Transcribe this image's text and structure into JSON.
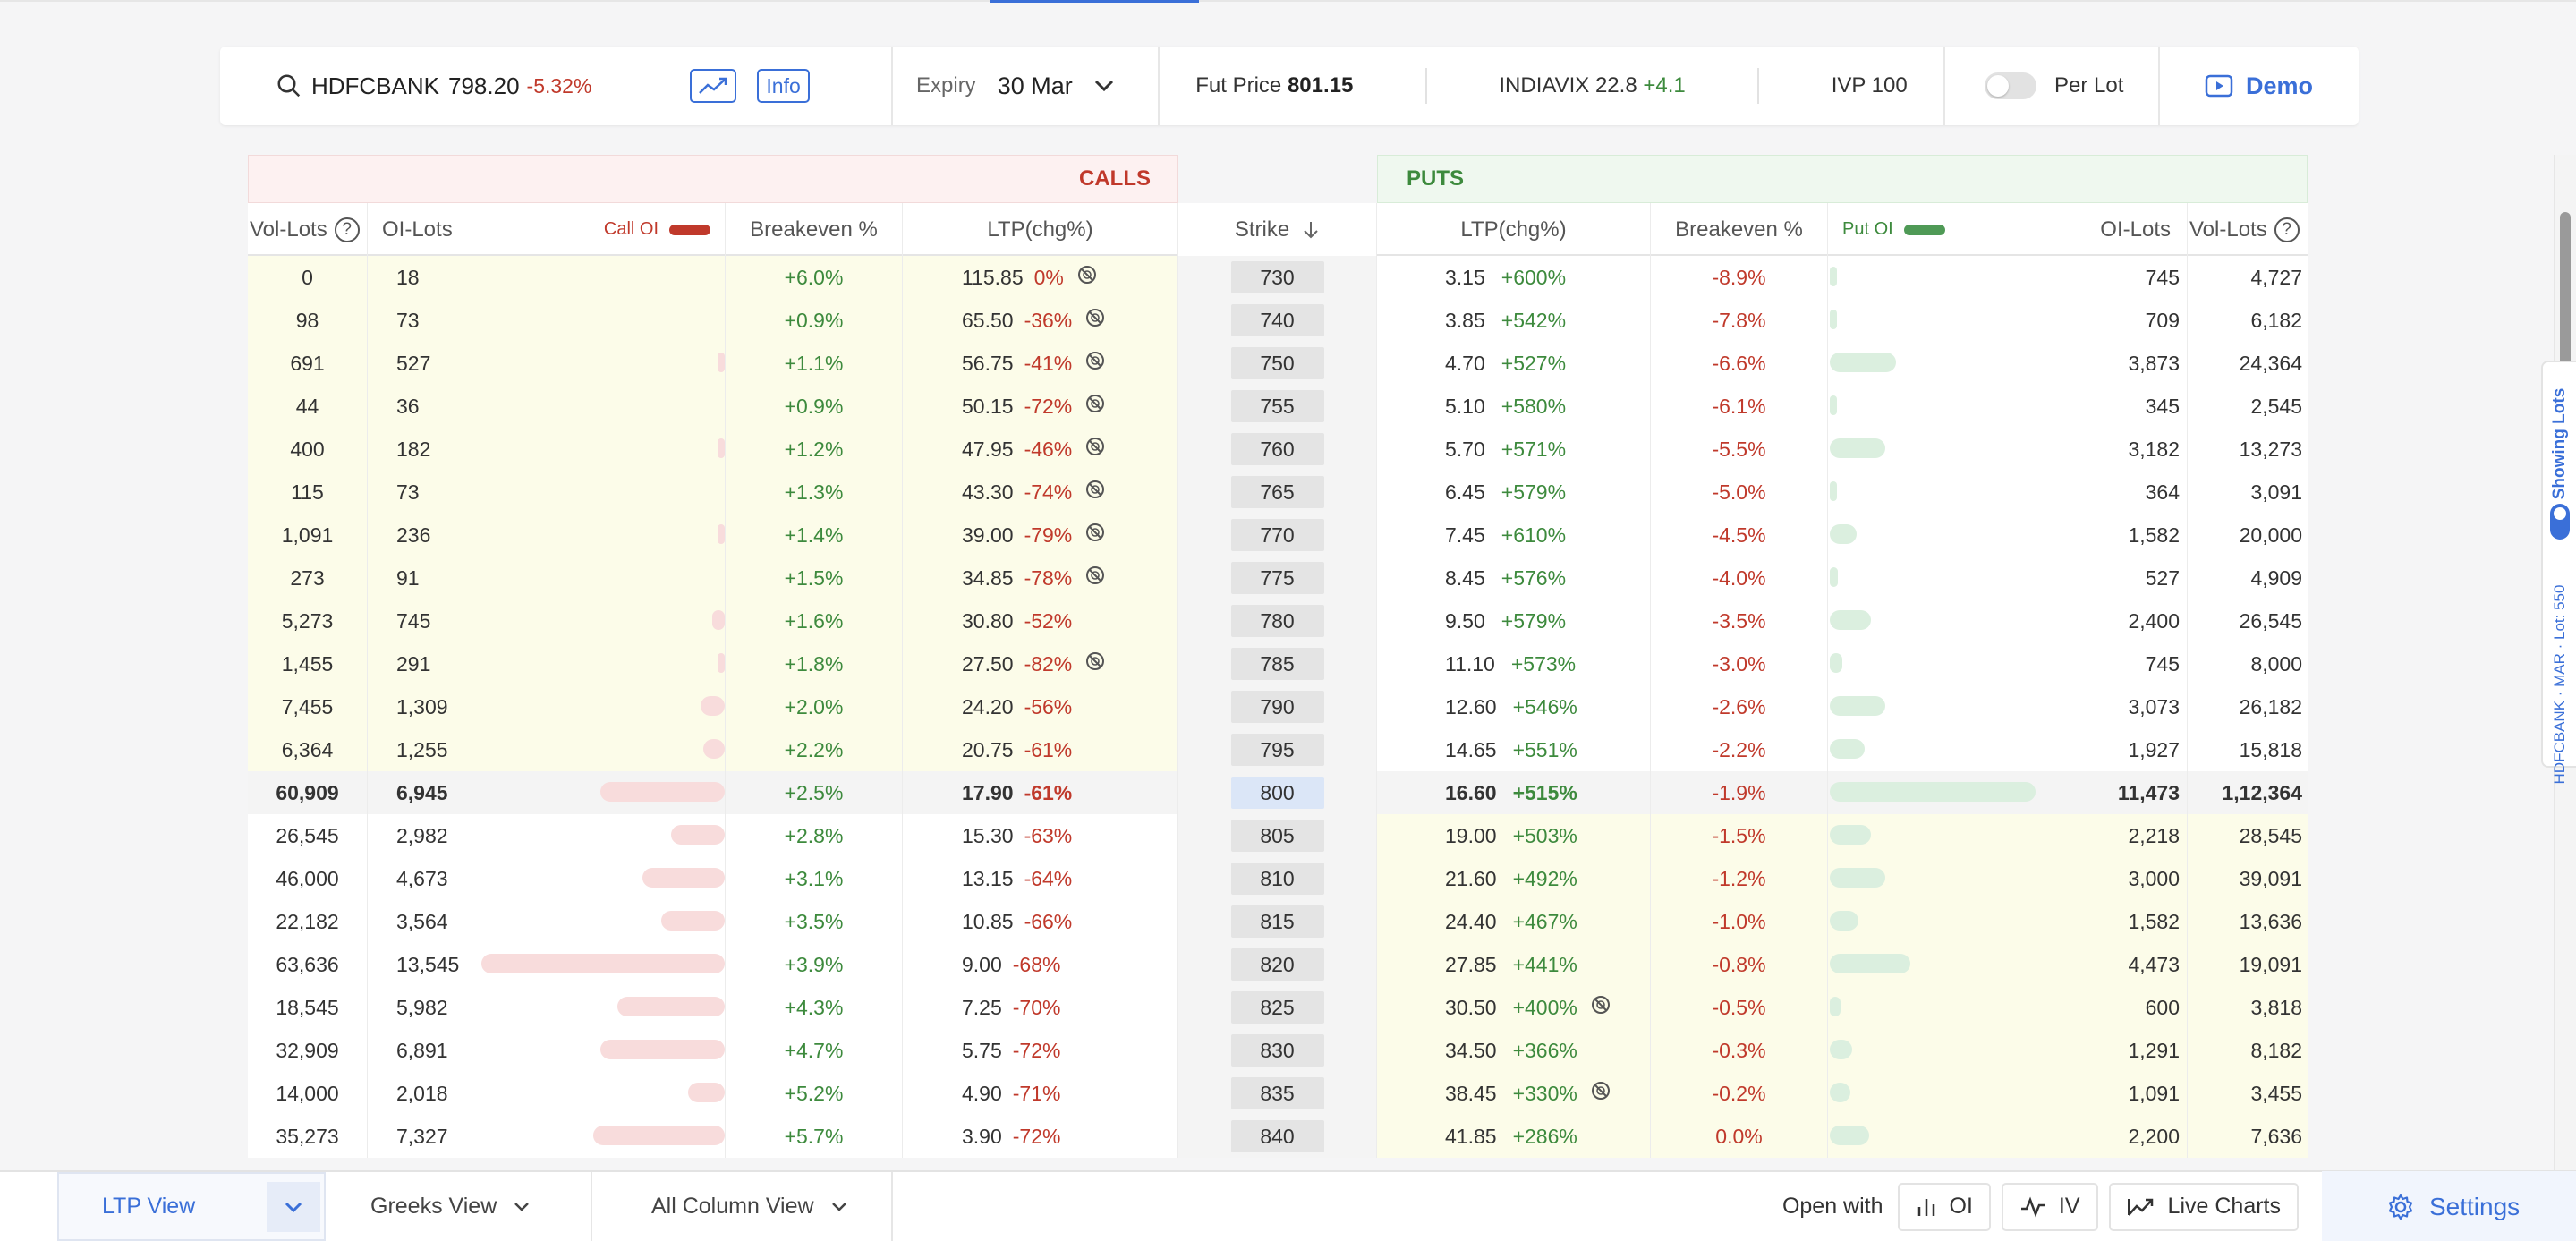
{
  "header": {
    "symbol": "HDFCBANK",
    "price": "798.20",
    "change": "-5.32%",
    "info_label": "Info",
    "expiry_label": "Expiry",
    "expiry_value": "30 Mar",
    "fut_label": "Fut Price",
    "fut_value": "801.15",
    "vix_label": "INDIAVIX",
    "vix_value": "22.8",
    "vix_change": "+4.1",
    "ivp_label": "IVP",
    "ivp_value": "100",
    "per_lot_label": "Per Lot",
    "demo_label": "Demo"
  },
  "bands": {
    "calls": "CALLS",
    "puts": "PUTS"
  },
  "columns": {
    "vol_lots": "Vol-Lots",
    "oi_lots": "OI-Lots",
    "call_oi": "Call OI",
    "breakeven": "Breakeven %",
    "ltp": "LTP(chg%)",
    "strike": "Strike",
    "put_oi": "Put OI"
  },
  "colors": {
    "accent": "#3a6fd8",
    "call": "#c0392b",
    "put": "#3d8a3d",
    "itm": "#fcfce9"
  },
  "rows": [
    {
      "strike": "730",
      "c_vol": "0",
      "c_oi": "18",
      "c_be": "+6.0%",
      "c_ltp": "115.85",
      "c_chg": "0%",
      "c_noicon": true,
      "p_ltp": "3.15",
      "p_chg": "+600%",
      "p_noicon": false,
      "p_be": "-8.9%",
      "p_oi": "745",
      "p_vol": "4,727",
      "c_bar": 0.0,
      "p_bar": 0.03,
      "zone": "call-itm"
    },
    {
      "strike": "740",
      "c_vol": "98",
      "c_oi": "73",
      "c_be": "+0.9%",
      "c_ltp": "65.50",
      "c_chg": "-36%",
      "c_noicon": true,
      "p_ltp": "3.85",
      "p_chg": "+542%",
      "p_noicon": false,
      "p_be": "-7.8%",
      "p_oi": "709",
      "p_vol": "6,182",
      "c_bar": 0.0,
      "p_bar": 0.03,
      "zone": "call-itm"
    },
    {
      "strike": "750",
      "c_vol": "691",
      "c_oi": "527",
      "c_be": "+1.1%",
      "c_ltp": "56.75",
      "c_chg": "-41%",
      "c_noicon": true,
      "p_ltp": "4.70",
      "p_chg": "+527%",
      "p_noicon": false,
      "p_be": "-6.6%",
      "p_oi": "3,873",
      "p_vol": "24,364",
      "c_bar": 0.02,
      "p_bar": 0.32,
      "zone": "call-itm"
    },
    {
      "strike": "755",
      "c_vol": "44",
      "c_oi": "36",
      "c_be": "+0.9%",
      "c_ltp": "50.15",
      "c_chg": "-72%",
      "c_noicon": true,
      "p_ltp": "5.10",
      "p_chg": "+580%",
      "p_noicon": false,
      "p_be": "-6.1%",
      "p_oi": "345",
      "p_vol": "2,545",
      "c_bar": 0.0,
      "p_bar": 0.03,
      "zone": "call-itm"
    },
    {
      "strike": "760",
      "c_vol": "400",
      "c_oi": "182",
      "c_be": "+1.2%",
      "c_ltp": "47.95",
      "c_chg": "-46%",
      "c_noicon": true,
      "p_ltp": "5.70",
      "p_chg": "+571%",
      "p_noicon": false,
      "p_be": "-5.5%",
      "p_oi": "3,182",
      "p_vol": "13,273",
      "c_bar": 0.01,
      "p_bar": 0.27,
      "zone": "call-itm"
    },
    {
      "strike": "765",
      "c_vol": "115",
      "c_oi": "73",
      "c_be": "+1.3%",
      "c_ltp": "43.30",
      "c_chg": "-74%",
      "c_noicon": true,
      "p_ltp": "6.45",
      "p_chg": "+579%",
      "p_noicon": false,
      "p_be": "-5.0%",
      "p_oi": "364",
      "p_vol": "3,091",
      "c_bar": 0.0,
      "p_bar": 0.03,
      "zone": "call-itm"
    },
    {
      "strike": "770",
      "c_vol": "1,091",
      "c_oi": "236",
      "c_be": "+1.4%",
      "c_ltp": "39.00",
      "c_chg": "-79%",
      "c_noicon": true,
      "p_ltp": "7.45",
      "p_chg": "+610%",
      "p_noicon": false,
      "p_be": "-4.5%",
      "p_oi": "1,582",
      "p_vol": "20,000",
      "c_bar": 0.01,
      "p_bar": 0.13,
      "zone": "call-itm"
    },
    {
      "strike": "775",
      "c_vol": "273",
      "c_oi": "91",
      "c_be": "+1.5%",
      "c_ltp": "34.85",
      "c_chg": "-78%",
      "c_noicon": true,
      "p_ltp": "8.45",
      "p_chg": "+576%",
      "p_noicon": false,
      "p_be": "-4.0%",
      "p_oi": "527",
      "p_vol": "4,909",
      "c_bar": 0.0,
      "p_bar": 0.04,
      "zone": "call-itm"
    },
    {
      "strike": "780",
      "c_vol": "5,273",
      "c_oi": "745",
      "c_be": "+1.6%",
      "c_ltp": "30.80",
      "c_chg": "-52%",
      "c_noicon": false,
      "p_ltp": "9.50",
      "p_chg": "+579%",
      "p_noicon": false,
      "p_be": "-3.5%",
      "p_oi": "2,400",
      "p_vol": "26,545",
      "c_bar": 0.05,
      "p_bar": 0.2,
      "zone": "call-itm"
    },
    {
      "strike": "785",
      "c_vol": "1,455",
      "c_oi": "291",
      "c_be": "+1.8%",
      "c_ltp": "27.50",
      "c_chg": "-82%",
      "c_noicon": true,
      "p_ltp": "11.10",
      "p_chg": "+573%",
      "p_noicon": false,
      "p_be": "-3.0%",
      "p_oi": "745",
      "p_vol": "8,000",
      "c_bar": 0.02,
      "p_bar": 0.06,
      "zone": "call-itm"
    },
    {
      "strike": "790",
      "c_vol": "7,455",
      "c_oi": "1,309",
      "c_be": "+2.0%",
      "c_ltp": "24.20",
      "c_chg": "-56%",
      "c_noicon": false,
      "p_ltp": "12.60",
      "p_chg": "+546%",
      "p_noicon": false,
      "p_be": "-2.6%",
      "p_oi": "3,073",
      "p_vol": "26,182",
      "c_bar": 0.1,
      "p_bar": 0.27,
      "zone": "call-itm"
    },
    {
      "strike": "795",
      "c_vol": "6,364",
      "c_oi": "1,255",
      "c_be": "+2.2%",
      "c_ltp": "20.75",
      "c_chg": "-61%",
      "c_noicon": false,
      "p_ltp": "14.65",
      "p_chg": "+551%",
      "p_noicon": false,
      "p_be": "-2.2%",
      "p_oi": "1,927",
      "p_vol": "15,818",
      "c_bar": 0.09,
      "p_bar": 0.17,
      "zone": "call-itm"
    },
    {
      "strike": "800",
      "c_vol": "60,909",
      "c_oi": "6,945",
      "c_be": "+2.5%",
      "c_ltp": "17.90",
      "c_chg": "-61%",
      "c_noicon": false,
      "p_ltp": "16.60",
      "p_chg": "+515%",
      "p_noicon": false,
      "p_be": "-1.9%",
      "p_oi": "11,473",
      "p_vol": "1,12,364",
      "c_bar": 0.51,
      "p_bar": 1.0,
      "zone": "atm"
    },
    {
      "strike": "805",
      "c_vol": "26,545",
      "c_oi": "2,982",
      "c_be": "+2.8%",
      "c_ltp": "15.30",
      "c_chg": "-63%",
      "c_noicon": false,
      "p_ltp": "19.00",
      "p_chg": "+503%",
      "p_noicon": false,
      "p_be": "-1.5%",
      "p_oi": "2,218",
      "p_vol": "28,545",
      "c_bar": 0.22,
      "p_bar": 0.2,
      "zone": "put-itm"
    },
    {
      "strike": "810",
      "c_vol": "46,000",
      "c_oi": "4,673",
      "c_be": "+3.1%",
      "c_ltp": "13.15",
      "c_chg": "-64%",
      "c_noicon": false,
      "p_ltp": "21.60",
      "p_chg": "+492%",
      "p_noicon": false,
      "p_be": "-1.2%",
      "p_oi": "3,000",
      "p_vol": "39,091",
      "c_bar": 0.34,
      "p_bar": 0.27,
      "zone": "put-itm"
    },
    {
      "strike": "815",
      "c_vol": "22,182",
      "c_oi": "3,564",
      "c_be": "+3.5%",
      "c_ltp": "10.85",
      "c_chg": "-66%",
      "c_noicon": false,
      "p_ltp": "24.40",
      "p_chg": "+467%",
      "p_noicon": false,
      "p_be": "-1.0%",
      "p_oi": "1,582",
      "p_vol": "13,636",
      "c_bar": 0.26,
      "p_bar": 0.14,
      "zone": "put-itm"
    },
    {
      "strike": "820",
      "c_vol": "63,636",
      "c_oi": "13,545",
      "c_be": "+3.9%",
      "c_ltp": "9.00",
      "c_chg": "-68%",
      "c_noicon": false,
      "p_ltp": "27.85",
      "p_chg": "+441%",
      "p_noicon": false,
      "p_be": "-0.8%",
      "p_oi": "4,473",
      "p_vol": "19,091",
      "c_bar": 1.0,
      "p_bar": 0.39,
      "zone": "put-itm"
    },
    {
      "strike": "825",
      "c_vol": "18,545",
      "c_oi": "5,982",
      "c_be": "+4.3%",
      "c_ltp": "7.25",
      "c_chg": "-70%",
      "c_noicon": false,
      "p_ltp": "30.50",
      "p_chg": "+400%",
      "p_noicon": true,
      "p_be": "-0.5%",
      "p_oi": "600",
      "p_vol": "3,818",
      "c_bar": 0.44,
      "p_bar": 0.05,
      "zone": "put-itm"
    },
    {
      "strike": "830",
      "c_vol": "32,909",
      "c_oi": "6,891",
      "c_be": "+4.7%",
      "c_ltp": "5.75",
      "c_chg": "-72%",
      "c_noicon": false,
      "p_ltp": "34.50",
      "p_chg": "+366%",
      "p_noicon": false,
      "p_be": "-0.3%",
      "p_oi": "1,291",
      "p_vol": "8,182",
      "c_bar": 0.51,
      "p_bar": 0.11,
      "zone": "put-itm"
    },
    {
      "strike": "835",
      "c_vol": "14,000",
      "c_oi": "2,018",
      "c_be": "+5.2%",
      "c_ltp": "4.90",
      "c_chg": "-71%",
      "c_noicon": false,
      "p_ltp": "38.45",
      "p_chg": "+330%",
      "p_noicon": true,
      "p_be": "-0.2%",
      "p_oi": "1,091",
      "p_vol": "3,455",
      "c_bar": 0.15,
      "p_bar": 0.1,
      "zone": "put-itm"
    },
    {
      "strike": "840",
      "c_vol": "35,273",
      "c_oi": "7,327",
      "c_be": "+5.7%",
      "c_ltp": "3.90",
      "c_chg": "-72%",
      "c_noicon": false,
      "p_ltp": "41.85",
      "p_chg": "+286%",
      "p_noicon": false,
      "p_be": "0.0%",
      "p_oi": "2,200",
      "p_vol": "7,636",
      "c_bar": 0.54,
      "p_bar": 0.19,
      "zone": "put-itm"
    }
  ],
  "bottom": {
    "ltp_view": "LTP View",
    "greeks_view": "Greeks View",
    "all_column_view": "All Column View",
    "open_with": "Open with",
    "oi_btn": "OI",
    "iv_btn": "IV",
    "live_charts": "Live Charts",
    "settings": "Settings"
  },
  "sidetab": {
    "showing_lots": "Showing Lots",
    "lot_info": "HDFCBANK · MAR · Lot: 550"
  }
}
